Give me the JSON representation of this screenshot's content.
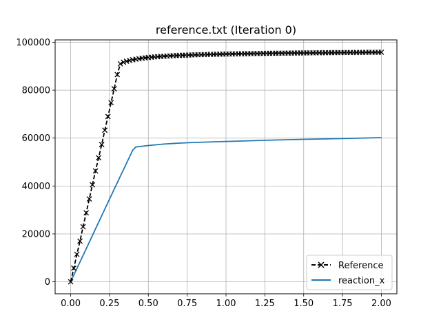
{
  "chart_data": {
    "type": "line",
    "title": "reference.txt (Iteration 0)",
    "xlabel": "",
    "ylabel": "",
    "xlim": [
      -0.1,
      2.1
    ],
    "ylim": [
      -5000,
      101000
    ],
    "xticks": [
      0.0,
      0.25,
      0.5,
      0.75,
      1.0,
      1.25,
      1.5,
      1.75,
      2.0
    ],
    "xtick_labels": [
      "0.00",
      "0.25",
      "0.50",
      "0.75",
      "1.00",
      "1.25",
      "1.50",
      "1.75",
      "2.00"
    ],
    "yticks": [
      0,
      20000,
      40000,
      60000,
      80000,
      100000
    ],
    "ytick_labels": [
      "0",
      "20000",
      "40000",
      "60000",
      "80000",
      "100000"
    ],
    "grid": true,
    "legend_position": "lower-right",
    "series": [
      {
        "name": "Reference",
        "style": "dashed-with-x-markers",
        "color": "#000000",
        "x": [
          0.0,
          0.02,
          0.04,
          0.06,
          0.08,
          0.1,
          0.12,
          0.14,
          0.16,
          0.18,
          0.2,
          0.22,
          0.24,
          0.26,
          0.28,
          0.3,
          0.32,
          0.34,
          0.36,
          0.38,
          0.4,
          0.42,
          0.44,
          0.46,
          0.48,
          0.5,
          0.52,
          0.54,
          0.56,
          0.58,
          0.6,
          0.62,
          0.64,
          0.66,
          0.68,
          0.7,
          0.72,
          0.74,
          0.76,
          0.78,
          0.8,
          0.82,
          0.84,
          0.86,
          0.88,
          0.9,
          0.92,
          0.94,
          0.96,
          0.98,
          1.0,
          1.02,
          1.04,
          1.06,
          1.08,
          1.1,
          1.12,
          1.14,
          1.16,
          1.18,
          1.2,
          1.22,
          1.24,
          1.26,
          1.28,
          1.3,
          1.32,
          1.34,
          1.36,
          1.38,
          1.4,
          1.42,
          1.44,
          1.46,
          1.48,
          1.5,
          1.52,
          1.54,
          1.56,
          1.58,
          1.6,
          1.62,
          1.64,
          1.66,
          1.68,
          1.7,
          1.72,
          1.74,
          1.76,
          1.78,
          1.8,
          1.82,
          1.84,
          1.86,
          1.88,
          1.9,
          1.92,
          1.94,
          1.96,
          1.98,
          2.0
        ],
        "y": [
          0,
          5700,
          11500,
          17000,
          23000,
          28800,
          34600,
          40500,
          46300,
          51800,
          57300,
          63300,
          69000,
          74800,
          80600,
          86500,
          91000,
          91700,
          92100,
          92400,
          92700,
          92950,
          93150,
          93350,
          93500,
          93650,
          93780,
          93900,
          94000,
          94100,
          94180,
          94260,
          94330,
          94400,
          94460,
          94520,
          94570,
          94620,
          94670,
          94710,
          94760,
          94800,
          94840,
          94880,
          94910,
          94950,
          94980,
          95010,
          95040,
          95070,
          95100,
          95120,
          95150,
          95170,
          95200,
          95220,
          95240,
          95260,
          95280,
          95300,
          95320,
          95340,
          95360,
          95380,
          95400,
          95410,
          95430,
          95450,
          95460,
          95480,
          95490,
          95510,
          95520,
          95540,
          95550,
          95560,
          95580,
          95590,
          95600,
          95620,
          95630,
          95640,
          95650,
          95660,
          95680,
          95690,
          95700,
          95710,
          95720,
          95730,
          95740,
          95750,
          95760,
          95770,
          95780,
          95790,
          95800,
          95810,
          95820,
          95830,
          95840
        ]
      },
      {
        "name": "reaction_x",
        "style": "solid",
        "color": "#1f77b4",
        "x": [
          0.0,
          0.1,
          0.2,
          0.3,
          0.4,
          0.42,
          0.5,
          0.6,
          0.7,
          0.8,
          1.0,
          1.25,
          1.5,
          1.75,
          2.0
        ],
        "y": [
          0,
          13800,
          27600,
          41400,
          55000,
          56300,
          56900,
          57500,
          57900,
          58200,
          58600,
          59100,
          59500,
          59800,
          60200
        ]
      }
    ]
  }
}
